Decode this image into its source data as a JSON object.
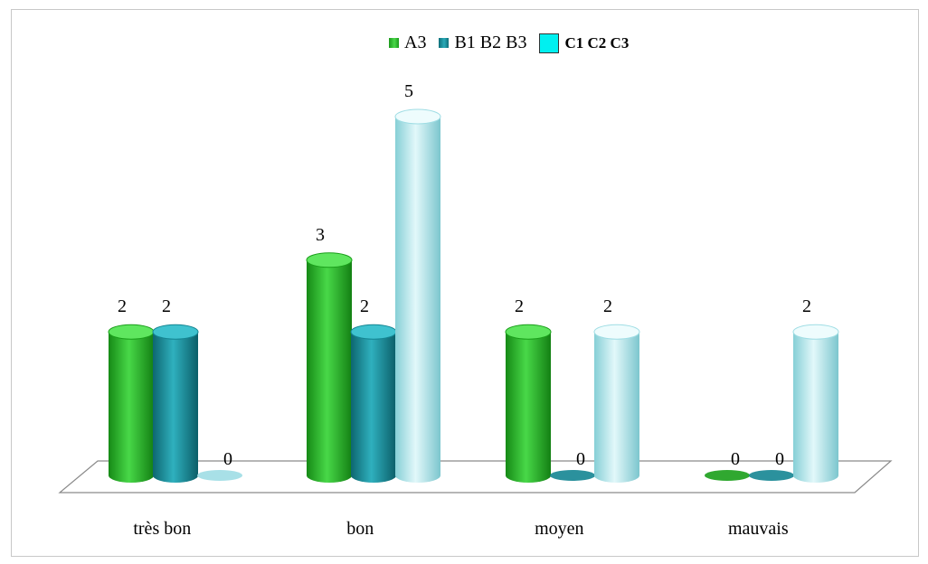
{
  "chart_data": {
    "type": "bar",
    "categories": [
      "très bon",
      "bon",
      "moyen",
      "mauvais"
    ],
    "series": [
      {
        "name": "A3",
        "values": [
          2,
          3,
          2,
          0
        ]
      },
      {
        "name": "B1 B2 B3",
        "values": [
          2,
          2,
          0,
          0
        ]
      },
      {
        "name": "C1 C2 C3",
        "values": [
          0,
          5,
          2,
          2
        ]
      }
    ],
    "title": "",
    "xlabel": "",
    "ylabel": "",
    "ylim": [
      0,
      5
    ],
    "grid": false,
    "legend_position": "top",
    "style": "3d-cylinder",
    "colors": {
      "A3": "#22b422",
      "B1 B2 B3": "#178c98",
      "C1 C2 C3": "#a8e6ec"
    }
  }
}
